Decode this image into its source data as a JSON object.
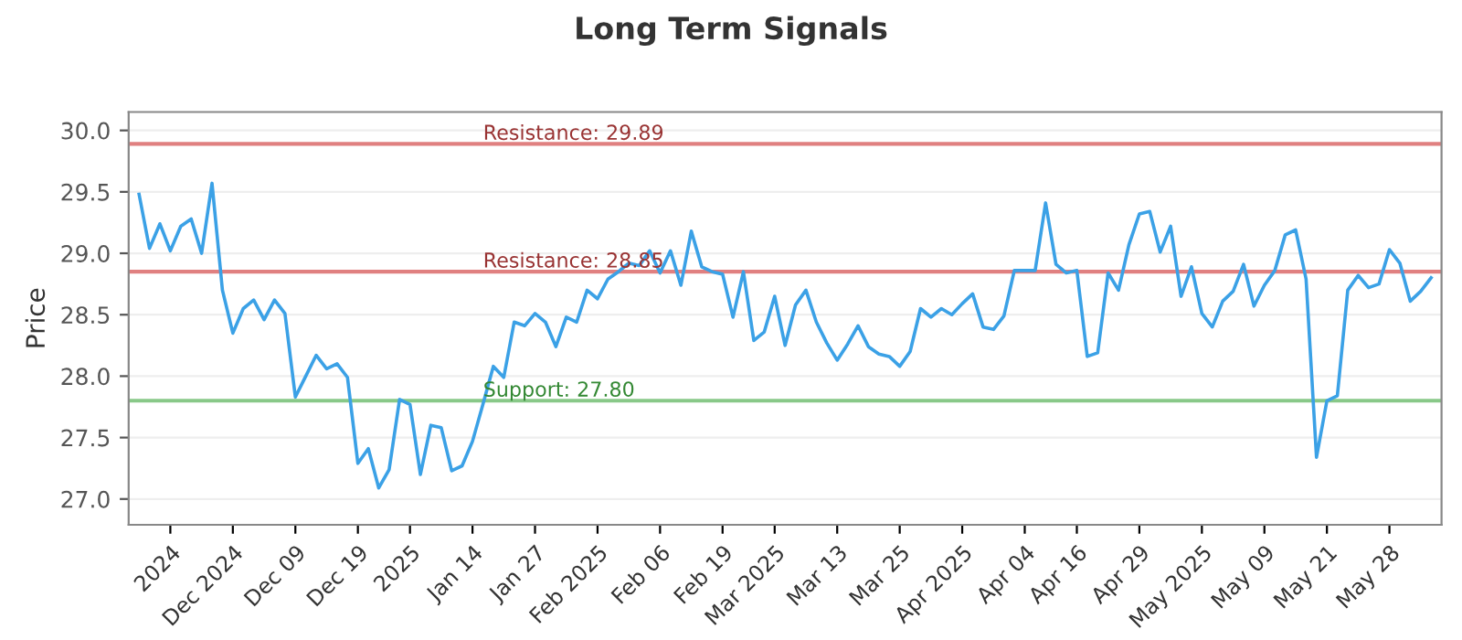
{
  "chart_data": {
    "type": "line",
    "title": "Long Term Signals",
    "ylabel": "Price",
    "categories": [
      null,
      null,
      null,
      "2024",
      null,
      null,
      null,
      null,
      null,
      "Dec 2024",
      null,
      null,
      null,
      null,
      null,
      "Dec 09",
      null,
      null,
      null,
      null,
      null,
      "Dec 19",
      null,
      null,
      null,
      null,
      "2025",
      null,
      null,
      null,
      null,
      null,
      "Jan 14",
      null,
      null,
      null,
      null,
      null,
      "Jan 27",
      null,
      null,
      null,
      null,
      null,
      "Feb 2025",
      null,
      null,
      null,
      null,
      null,
      "Feb 06",
      null,
      null,
      null,
      null,
      null,
      "Feb 19",
      null,
      null,
      null,
      null,
      "Mar 2025",
      null,
      null,
      null,
      null,
      null,
      "Mar 13",
      null,
      null,
      null,
      null,
      null,
      "Mar 25",
      null,
      null,
      null,
      null,
      null,
      "Apr 2025",
      null,
      null,
      null,
      null,
      null,
      "Apr 04",
      null,
      null,
      null,
      null,
      "Apr 16",
      null,
      null,
      null,
      null,
      null,
      "Apr 29",
      null,
      null,
      null,
      null,
      null,
      "May 2025",
      null,
      null,
      null,
      null,
      null,
      "May 09",
      null,
      null,
      null,
      null,
      null,
      "May 21",
      null,
      null,
      null,
      null,
      null,
      "May 28",
      null,
      null,
      null,
      null
    ],
    "series": [
      {
        "color": "#3ba1e6",
        "values": [
          29.48,
          29.04,
          29.24,
          29.02,
          29.22,
          29.28,
          29.0,
          29.57,
          28.7,
          28.35,
          28.55,
          28.62,
          28.46,
          28.62,
          28.51,
          27.83,
          28.0,
          28.17,
          28.06,
          28.1,
          27.99,
          27.29,
          27.41,
          27.09,
          27.24,
          27.81,
          27.77,
          27.2,
          27.6,
          27.58,
          27.23,
          27.27,
          27.47,
          27.77,
          28.08,
          27.99,
          28.44,
          28.41,
          28.51,
          28.44,
          28.24,
          28.48,
          28.44,
          28.7,
          28.63,
          28.79,
          28.85,
          28.92,
          28.9,
          29.02,
          28.84,
          29.02,
          28.74,
          29.18,
          28.89,
          28.85,
          28.83,
          28.48,
          28.85,
          28.29,
          28.36,
          28.65,
          28.25,
          28.58,
          28.7,
          28.44,
          28.27,
          28.13,
          28.26,
          28.41,
          28.24,
          28.18,
          28.16,
          28.08,
          28.2,
          28.55,
          28.48,
          28.55,
          28.5,
          28.59,
          28.67,
          28.4,
          28.38,
          28.49,
          28.86,
          28.86,
          28.86,
          29.41,
          28.91,
          28.84,
          28.86,
          28.16,
          28.19,
          28.84,
          28.7,
          29.07,
          29.32,
          29.34,
          29.01,
          29.22,
          28.65,
          28.89,
          28.51,
          28.4,
          28.61,
          28.69,
          28.91,
          28.57,
          28.74,
          28.86,
          29.15,
          29.19,
          28.79,
          27.34,
          27.8,
          27.84,
          28.7,
          28.82,
          28.72,
          28.75,
          29.03,
          28.92,
          28.61,
          28.69,
          28.8
        ]
      }
    ],
    "ylim": [
      26.79,
      30.15
    ],
    "yticks": [
      {
        "value": 27.0,
        "label": "27.0"
      },
      {
        "value": 27.5,
        "label": "27.5"
      },
      {
        "value": 28.0,
        "label": "28.0"
      },
      {
        "value": 28.5,
        "label": "28.5"
      },
      {
        "value": 29.0,
        "label": "29.0"
      },
      {
        "value": 29.5,
        "label": "29.5"
      },
      {
        "value": 30.0,
        "label": "30.0"
      }
    ],
    "grid": "y",
    "ref_lines": [
      {
        "axis": "y",
        "value": 29.89,
        "label": "Resistance: 29.89",
        "color": "#e08080"
      },
      {
        "axis": "y",
        "value": 28.85,
        "label": "Resistance: 28.85",
        "color": "#e08080"
      },
      {
        "axis": "y",
        "value": 27.8,
        "label": "Support: 27.80",
        "color": "#88c888"
      }
    ]
  }
}
